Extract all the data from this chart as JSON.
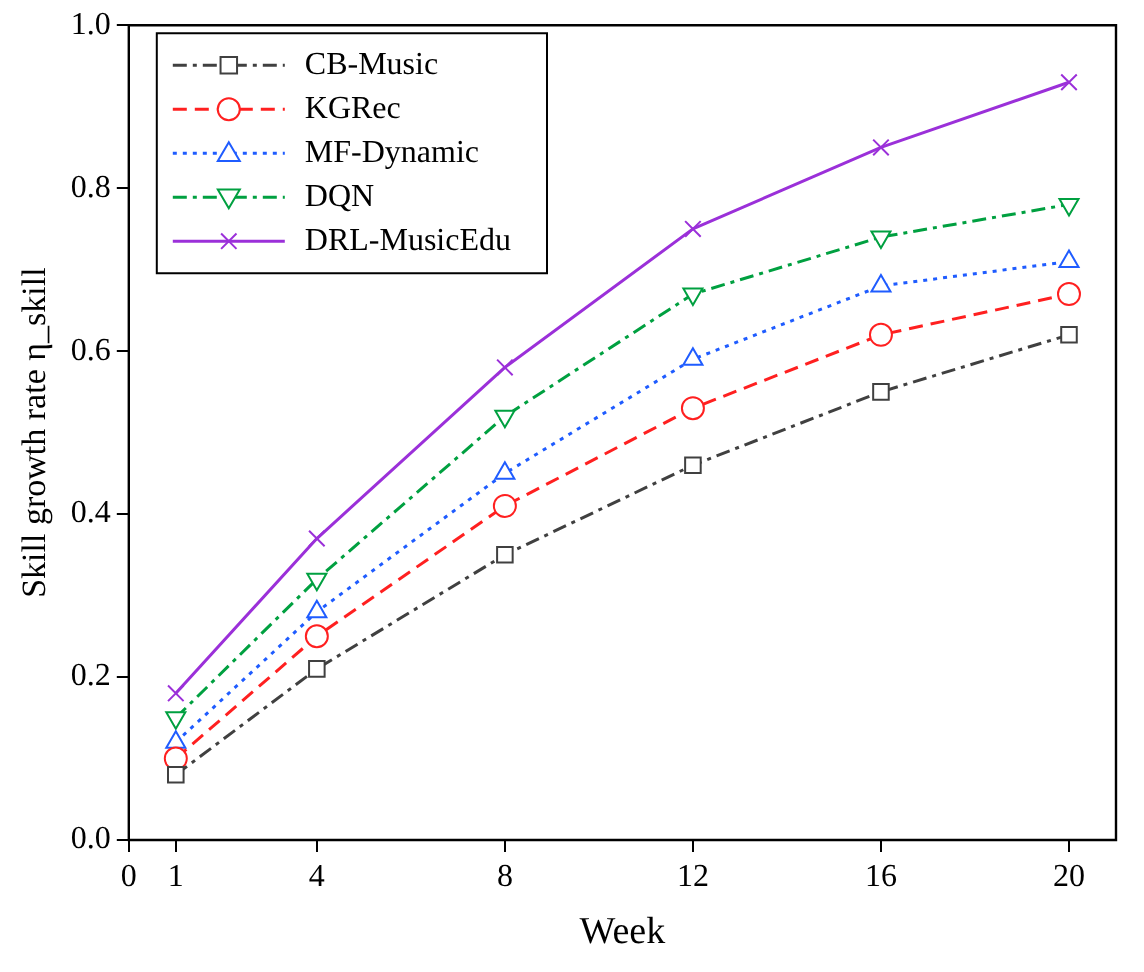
{
  "chart_data": {
    "type": "line",
    "xlabel": "Week",
    "ylabel": "Skill growth rate η_skill",
    "x": [
      1,
      4,
      8,
      12,
      16,
      20
    ],
    "xlim": [
      0,
      21
    ],
    "xticks": [
      0,
      1,
      4,
      8,
      12,
      16,
      20
    ],
    "ylim": [
      0,
      1
    ],
    "yticks": [
      {
        "value": 0,
        "label": "0.0"
      },
      0.2,
      0.4,
      0.6,
      0.8,
      {
        "value": 1,
        "label": "1.0"
      }
    ],
    "grid": false,
    "legend": "top left",
    "series": [
      {
        "name": "CB-Music",
        "color": "#404040",
        "marker": "square",
        "line_style": "dashdot",
        "values": [
          0.08,
          0.21,
          0.35,
          0.46,
          0.55,
          0.62
        ]
      },
      {
        "name": "KGRec",
        "color": "#ff2020",
        "marker": "circle",
        "line_style": "dashed",
        "values": [
          0.1,
          0.25,
          0.41,
          0.53,
          0.62,
          0.67
        ]
      },
      {
        "name": "MF-Dynamic",
        "color": "#1f5cff",
        "marker": "triangle",
        "line_style": "dotted",
        "values": [
          0.12,
          0.28,
          0.45,
          0.59,
          0.68,
          0.71
        ]
      },
      {
        "name": "DQN",
        "color": "#00a040",
        "marker": "triangle-down",
        "line_style": "dashdot",
        "values": [
          0.15,
          0.32,
          0.52,
          0.67,
          0.74,
          0.78
        ]
      },
      {
        "name": "DRL-MusicEdu",
        "color": "#9b30d9",
        "marker": "cross",
        "line_style": "solid",
        "values": [
          0.18,
          0.37,
          0.58,
          0.75,
          0.85,
          0.93
        ]
      }
    ]
  }
}
